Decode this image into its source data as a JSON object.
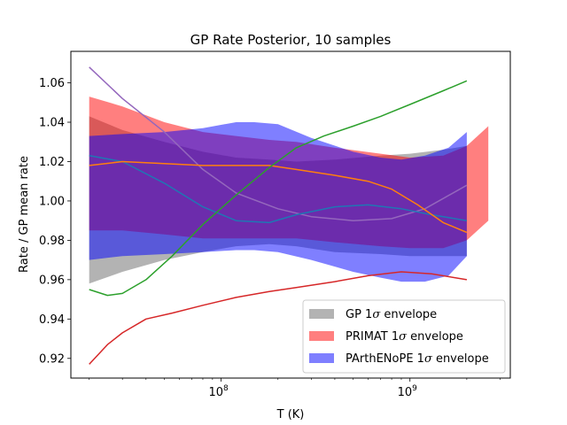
{
  "chart_data": {
    "type": "line",
    "title": "GP Rate Posterior, 10 samples",
    "xlabel": "T (K)",
    "ylabel": "Rate / GP mean rate",
    "xscale": "log",
    "xlim": [
      16000000,
      3400000000
    ],
    "ylim": [
      0.91,
      1.076
    ],
    "x_ticks": [
      {
        "value": 100000000,
        "base": "10",
        "exp": "8"
      },
      {
        "value": 1000000000,
        "base": "10",
        "exp": "9"
      }
    ],
    "y_ticks": [
      0.92,
      0.94,
      0.96,
      0.98,
      1.0,
      1.02,
      1.04,
      1.06
    ],
    "y_tick_labels": [
      "0.92",
      "0.94",
      "0.96",
      "0.98",
      "1.00",
      "1.02",
      "1.04",
      "1.06"
    ],
    "grid": false,
    "legend_position": "lower right",
    "bands": [
      {
        "name": "GP 1σ envelope",
        "legend_prefix": "GP 1",
        "legend_suffix": " envelope",
        "color": "#808080",
        "opacity": 0.6,
        "x": [
          20000000,
          30000000,
          50000000,
          80000000,
          120000000,
          180000000,
          250000000,
          400000000,
          700000000,
          1000000000,
          1500000000,
          2000000000
        ],
        "upper": [
          1.043,
          1.036,
          1.03,
          1.025,
          1.022,
          1.021,
          1.02,
          1.021,
          1.023,
          1.024,
          1.026,
          1.028
        ],
        "lower": [
          0.958,
          0.964,
          0.97,
          0.974,
          0.977,
          0.978,
          0.977,
          0.974,
          0.973,
          0.972,
          0.972,
          0.972
        ]
      },
      {
        "name": "PRIMAT 1σ envelope",
        "legend_prefix": "PRIMAT 1",
        "legend_suffix": " envelope",
        "color": "#ff0000",
        "opacity": 0.5,
        "x": [
          20000000,
          30000000,
          50000000,
          80000000,
          120000000,
          180000000,
          250000000,
          400000000,
          700000000,
          1000000000,
          1500000000,
          2000000000,
          2600000000
        ],
        "upper": [
          1.053,
          1.048,
          1.04,
          1.035,
          1.033,
          1.031,
          1.03,
          1.027,
          1.024,
          1.022,
          1.023,
          1.028,
          1.038
        ],
        "lower": [
          0.985,
          0.985,
          0.983,
          0.981,
          0.981,
          0.981,
          0.981,
          0.979,
          0.977,
          0.976,
          0.976,
          0.98,
          0.99
        ]
      },
      {
        "name": "PArthENoPE 1σ envelope",
        "legend_prefix": "PArthENoPE 1",
        "legend_suffix": " envelope",
        "color": "#0000ff",
        "opacity": 0.5,
        "x": [
          20000000,
          30000000,
          50000000,
          80000000,
          120000000,
          150000000,
          200000000,
          300000000,
          500000000,
          700000000,
          900000000,
          1200000000,
          1600000000,
          2000000000
        ],
        "upper": [
          1.033,
          1.034,
          1.035,
          1.037,
          1.04,
          1.04,
          1.039,
          1.032,
          1.025,
          1.022,
          1.021,
          1.023,
          1.027,
          1.035
        ],
        "lower": [
          0.97,
          0.972,
          0.973,
          0.974,
          0.975,
          0.975,
          0.974,
          0.97,
          0.964,
          0.961,
          0.959,
          0.959,
          0.962,
          0.972
        ]
      }
    ],
    "series": [
      {
        "color": "#9467bd",
        "x": [
          20000000,
          30000000,
          50000000,
          80000000,
          120000000,
          200000000,
          300000000,
          500000000,
          800000000,
          1200000000,
          2000000000
        ],
        "values": [
          1.068,
          1.052,
          1.035,
          1.016,
          1.004,
          0.996,
          0.992,
          0.99,
          0.991,
          0.996,
          1.008
        ]
      },
      {
        "color": "#1f77b4",
        "x": [
          20000000,
          30000000,
          50000000,
          80000000,
          120000000,
          180000000,
          250000000,
          400000000,
          600000000,
          900000000,
          1300000000,
          2000000000
        ],
        "values": [
          1.023,
          1.02,
          1.009,
          0.997,
          0.99,
          0.989,
          0.993,
          0.997,
          0.998,
          0.996,
          0.993,
          0.99
        ]
      },
      {
        "color": "#ff7f0e",
        "x": [
          20000000,
          30000000,
          50000000,
          80000000,
          120000000,
          180000000,
          250000000,
          400000000,
          600000000,
          800000000,
          1100000000,
          1500000000,
          2000000000
        ],
        "values": [
          1.018,
          1.02,
          1.019,
          1.018,
          1.018,
          1.018,
          1.016,
          1.013,
          1.01,
          1.006,
          0.998,
          0.989,
          0.984
        ]
      },
      {
        "color": "#2ca02c",
        "x": [
          20000000,
          25000000,
          30000000,
          40000000,
          55000000,
          80000000,
          120000000,
          180000000,
          250000000,
          350000000,
          500000000,
          700000000,
          1000000000,
          1500000000,
          2000000000
        ],
        "values": [
          0.955,
          0.952,
          0.953,
          0.96,
          0.972,
          0.988,
          1.003,
          1.017,
          1.027,
          1.033,
          1.038,
          1.043,
          1.049,
          1.056,
          1.061
        ]
      },
      {
        "color": "#d62728",
        "x": [
          20000000,
          25000000,
          30000000,
          40000000,
          55000000,
          80000000,
          120000000,
          180000000,
          250000000,
          400000000,
          600000000,
          900000000,
          1300000000,
          2000000000
        ],
        "values": [
          0.917,
          0.927,
          0.933,
          0.94,
          0.943,
          0.947,
          0.951,
          0.954,
          0.956,
          0.959,
          0.962,
          0.964,
          0.963,
          0.96
        ]
      }
    ]
  }
}
